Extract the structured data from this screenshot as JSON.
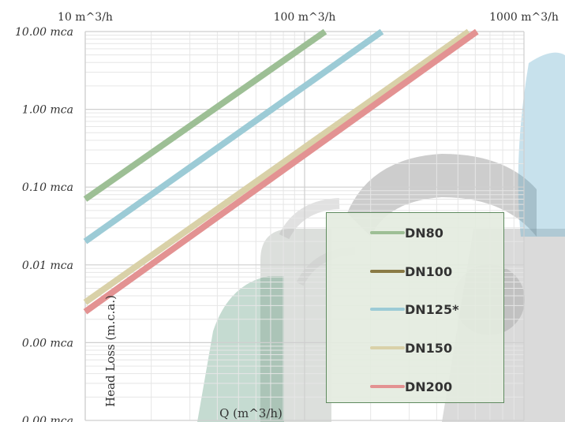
{
  "chart_data": {
    "type": "line",
    "title": "",
    "xlabel": "Q (m^3/h)",
    "ylabel": "Head Loss (m.c.a.)",
    "x_scale": "log",
    "y_scale": "log",
    "xlim": [
      10,
      1000
    ],
    "ylim": [
      0.0001,
      10
    ],
    "x_tick_labels": [
      "10 m^3/h",
      "100 m^3/h",
      "1000 m^3/h"
    ],
    "y_tick_labels": [
      "10.00 mca",
      "1.00 mca",
      "0.10 mca",
      "0.01 mca",
      "0.00 mca",
      "0.00 mca"
    ],
    "grid": true,
    "legend_position": "lower-right",
    "series": [
      {
        "name": "DN80",
        "color": "#9dbf95",
        "x": [
          10,
          124
        ],
        "y": [
          0.07,
          10
        ]
      },
      {
        "name": "DN100",
        "color": "#8a7a45",
        "x": [],
        "y": []
      },
      {
        "name": "DN125*",
        "color": "#9ccbd6",
        "x": [
          10,
          225
        ],
        "y": [
          0.02,
          10
        ]
      },
      {
        "name": "DN150",
        "color": "#d9d1a8",
        "x": [
          10,
          560
        ],
        "y": [
          0.0033,
          10
        ]
      },
      {
        "name": "DN200",
        "color": "#e39292",
        "x": [
          10,
          610
        ],
        "y": [
          0.0025,
          10
        ]
      }
    ]
  }
}
